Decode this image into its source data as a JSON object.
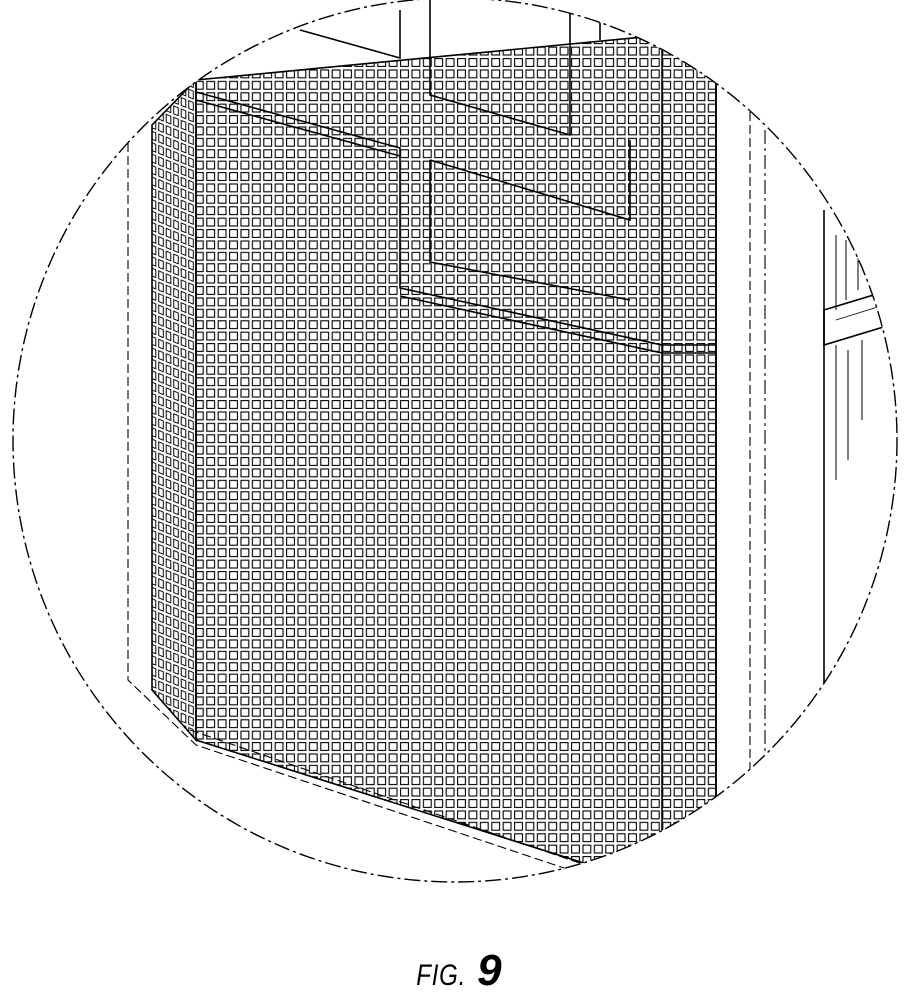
{
  "figure": {
    "label_prefix": "FIG.",
    "label_number": "9",
    "ink_color": "#000000",
    "paper_color": "#ffffff"
  }
}
